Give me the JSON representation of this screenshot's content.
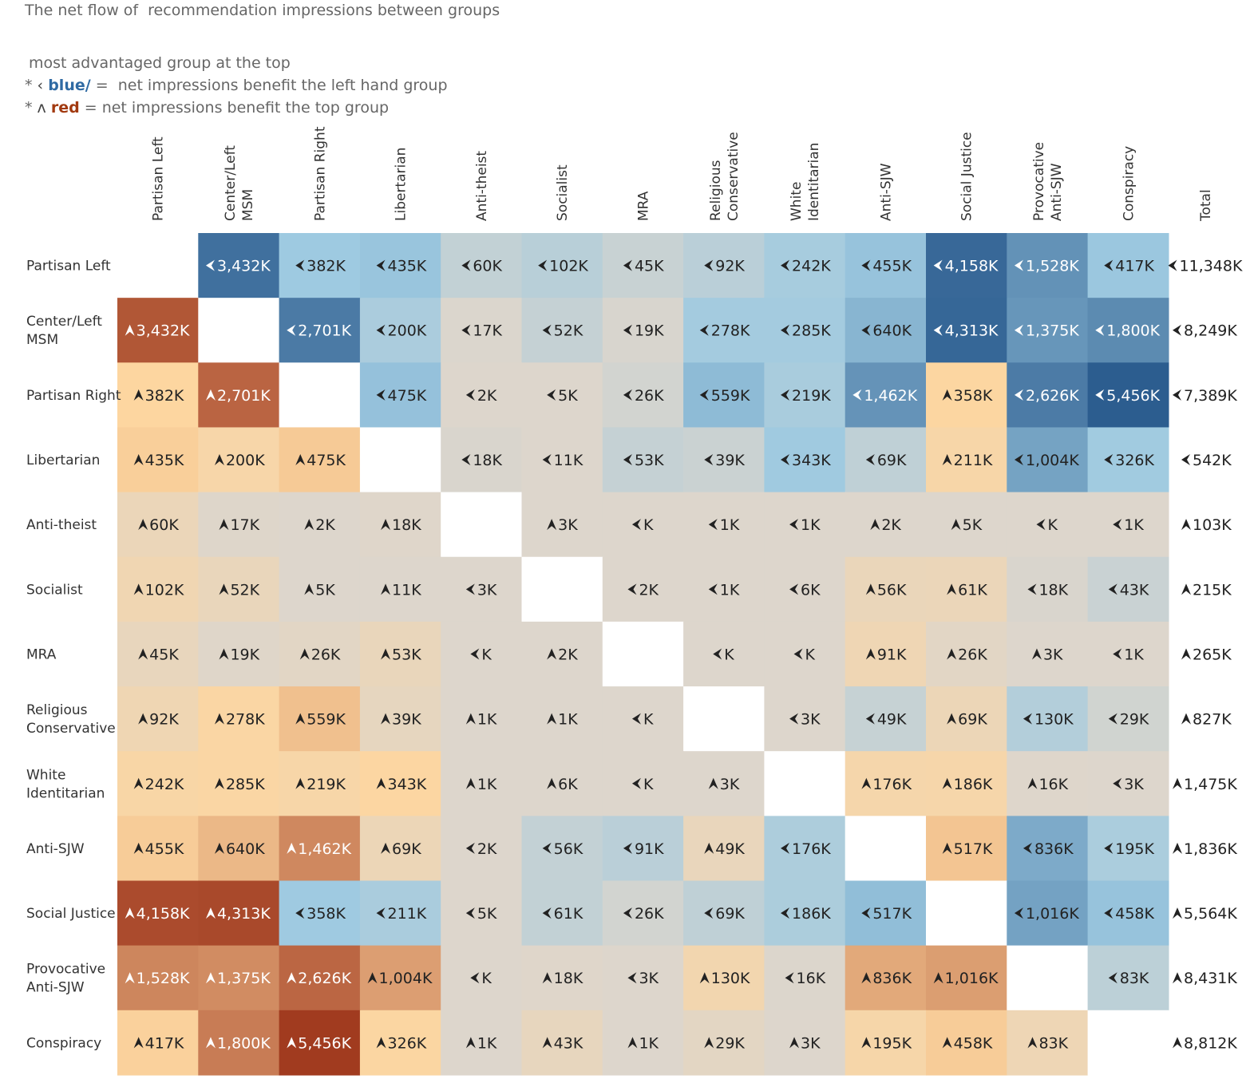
{
  "title": "The net flow of  recommendation impressions between groups",
  "legend": {
    "line1": "most advantaged group at the top",
    "line2_prefix": "* ",
    "line2_glyph": "‹",
    "line2_colored": "blue/",
    "line2_rest": " =  net impressions benefit the left hand group",
    "line3_prefix": "* ",
    "line3_glyph": "ʌ",
    "line3_colored": "red",
    "line3_rest": " = net impressions benefit the top group"
  },
  "colors": {
    "blue_dark": "#2c5d8f",
    "blue_light": "#9ecae1",
    "neutral": "#ddd6cc",
    "orange_light": "#fdd6a0",
    "orange_dark": "#a13b1f",
    "text_light": "#ffffff",
    "text_dark": "#222222"
  },
  "chart_data": {
    "type": "heatmap",
    "title": "The net flow of  recommendation impressions between groups",
    "unit": "K",
    "columns": [
      [
        "Partisan Left"
      ],
      [
        "Center/Left",
        "MSM"
      ],
      [
        "Partisan Right"
      ],
      [
        "Libertarian"
      ],
      [
        "Anti-theist"
      ],
      [
        "Socialist"
      ],
      [
        "MRA"
      ],
      [
        "Religious",
        "Conservative"
      ],
      [
        "White",
        "Identitarian"
      ],
      [
        "Anti-SJW"
      ],
      [
        "Social Justice"
      ],
      [
        "Provocative",
        "Anti-SJW"
      ],
      [
        "Conspiracy"
      ],
      [
        "Total"
      ]
    ],
    "rows": [
      [
        "Partisan Left"
      ],
      [
        "Center/Left",
        "MSM"
      ],
      [
        "Partisan Right"
      ],
      [
        "Libertarian"
      ],
      [
        "Anti-theist"
      ],
      [
        "Socialist"
      ],
      [
        "MRA"
      ],
      [
        "Religious",
        "Conservative"
      ],
      [
        "White",
        "Identitarian"
      ],
      [
        "Anti-SJW"
      ],
      [
        "Social Justice"
      ],
      [
        "Provocative",
        "Anti-SJW"
      ],
      [
        "Conspiracy"
      ]
    ],
    "direction_key": {
      "L": "net impressions benefit the left hand group",
      "U": "net impressions benefit the top group"
    },
    "cells": [
      [
        null,
        [
          "L",
          "3,432K"
        ],
        [
          "L",
          "382K"
        ],
        [
          "L",
          "435K"
        ],
        [
          "L",
          "60K"
        ],
        [
          "L",
          "102K"
        ],
        [
          "L",
          "45K"
        ],
        [
          "L",
          "92K"
        ],
        [
          "L",
          "242K"
        ],
        [
          "L",
          "455K"
        ],
        [
          "L",
          "4,158K"
        ],
        [
          "L",
          "1,528K"
        ],
        [
          "L",
          "417K"
        ]
      ],
      [
        [
          "U",
          "3,432K"
        ],
        null,
        [
          "L",
          "2,701K"
        ],
        [
          "L",
          "200K"
        ],
        [
          "L",
          "17K"
        ],
        [
          "L",
          "52K"
        ],
        [
          "L",
          "19K"
        ],
        [
          "L",
          "278K"
        ],
        [
          "L",
          "285K"
        ],
        [
          "L",
          "640K"
        ],
        [
          "L",
          "4,313K"
        ],
        [
          "L",
          "1,375K"
        ],
        [
          "L",
          "1,800K"
        ]
      ],
      [
        [
          "U",
          "382K"
        ],
        [
          "U",
          "2,701K"
        ],
        null,
        [
          "L",
          "475K"
        ],
        [
          "L",
          "2K"
        ],
        [
          "L",
          "5K"
        ],
        [
          "L",
          "26K"
        ],
        [
          "L",
          "559K"
        ],
        [
          "L",
          "219K"
        ],
        [
          "L",
          "1,462K"
        ],
        [
          "U",
          "358K"
        ],
        [
          "L",
          "2,626K"
        ],
        [
          "L",
          "5,456K"
        ]
      ],
      [
        [
          "U",
          "435K"
        ],
        [
          "U",
          "200K"
        ],
        [
          "U",
          "475K"
        ],
        null,
        [
          "L",
          "18K"
        ],
        [
          "L",
          "11K"
        ],
        [
          "L",
          "53K"
        ],
        [
          "L",
          "39K"
        ],
        [
          "L",
          "343K"
        ],
        [
          "L",
          "69K"
        ],
        [
          "U",
          "211K"
        ],
        [
          "L",
          "1,004K"
        ],
        [
          "L",
          "326K"
        ]
      ],
      [
        [
          "U",
          "60K"
        ],
        [
          "U",
          "17K"
        ],
        [
          "U",
          "2K"
        ],
        [
          "U",
          "18K"
        ],
        null,
        [
          "U",
          "3K"
        ],
        [
          "L",
          "K"
        ],
        [
          "L",
          "1K"
        ],
        [
          "L",
          "1K"
        ],
        [
          "U",
          "2K"
        ],
        [
          "U",
          "5K"
        ],
        [
          "L",
          "K"
        ],
        [
          "L",
          "1K"
        ]
      ],
      [
        [
          "U",
          "102K"
        ],
        [
          "U",
          "52K"
        ],
        [
          "U",
          "5K"
        ],
        [
          "U",
          "11K"
        ],
        [
          "L",
          "3K"
        ],
        null,
        [
          "L",
          "2K"
        ],
        [
          "L",
          "1K"
        ],
        [
          "L",
          "6K"
        ],
        [
          "U",
          "56K"
        ],
        [
          "U",
          "61K"
        ],
        [
          "L",
          "18K"
        ],
        [
          "L",
          "43K"
        ]
      ],
      [
        [
          "U",
          "45K"
        ],
        [
          "U",
          "19K"
        ],
        [
          "U",
          "26K"
        ],
        [
          "U",
          "53K"
        ],
        [
          "L",
          "K"
        ],
        [
          "U",
          "2K"
        ],
        null,
        [
          "L",
          "K"
        ],
        [
          "L",
          "K"
        ],
        [
          "U",
          "91K"
        ],
        [
          "U",
          "26K"
        ],
        [
          "U",
          "3K"
        ],
        [
          "L",
          "1K"
        ]
      ],
      [
        [
          "U",
          "92K"
        ],
        [
          "U",
          "278K"
        ],
        [
          "U",
          "559K"
        ],
        [
          "U",
          "39K"
        ],
        [
          "U",
          "1K"
        ],
        [
          "U",
          "1K"
        ],
        [
          "L",
          "K"
        ],
        null,
        [
          "L",
          "3K"
        ],
        [
          "L",
          "49K"
        ],
        [
          "U",
          "69K"
        ],
        [
          "L",
          "130K"
        ],
        [
          "L",
          "29K"
        ]
      ],
      [
        [
          "U",
          "242K"
        ],
        [
          "U",
          "285K"
        ],
        [
          "U",
          "219K"
        ],
        [
          "U",
          "343K"
        ],
        [
          "U",
          "1K"
        ],
        [
          "U",
          "6K"
        ],
        [
          "L",
          "K"
        ],
        [
          "U",
          "3K"
        ],
        null,
        [
          "U",
          "176K"
        ],
        [
          "U",
          "186K"
        ],
        [
          "U",
          "16K"
        ],
        [
          "L",
          "3K"
        ]
      ],
      [
        [
          "U",
          "455K"
        ],
        [
          "U",
          "640K"
        ],
        [
          "U",
          "1,462K"
        ],
        [
          "U",
          "69K"
        ],
        [
          "L",
          "2K"
        ],
        [
          "L",
          "56K"
        ],
        [
          "L",
          "91K"
        ],
        [
          "U",
          "49K"
        ],
        [
          "L",
          "176K"
        ],
        null,
        [
          "U",
          "517K"
        ],
        [
          "L",
          "836K"
        ],
        [
          "L",
          "195K"
        ]
      ],
      [
        [
          "U",
          "4,158K"
        ],
        [
          "U",
          "4,313K"
        ],
        [
          "L",
          "358K"
        ],
        [
          "L",
          "211K"
        ],
        [
          "L",
          "5K"
        ],
        [
          "L",
          "61K"
        ],
        [
          "L",
          "26K"
        ],
        [
          "L",
          "69K"
        ],
        [
          "L",
          "186K"
        ],
        [
          "L",
          "517K"
        ],
        null,
        [
          "L",
          "1,016K"
        ],
        [
          "L",
          "458K"
        ]
      ],
      [
        [
          "U",
          "1,528K"
        ],
        [
          "U",
          "1,375K"
        ],
        [
          "U",
          "2,626K"
        ],
        [
          "U",
          "1,004K"
        ],
        [
          "L",
          "K"
        ],
        [
          "U",
          "18K"
        ],
        [
          "L",
          "3K"
        ],
        [
          "U",
          "130K"
        ],
        [
          "L",
          "16K"
        ],
        [
          "U",
          "836K"
        ],
        [
          "U",
          "1,016K"
        ],
        null,
        [
          "L",
          "83K"
        ]
      ],
      [
        [
          "U",
          "417K"
        ],
        [
          "U",
          "1,800K"
        ],
        [
          "U",
          "5,456K"
        ],
        [
          "U",
          "326K"
        ],
        [
          "U",
          "1K"
        ],
        [
          "U",
          "43K"
        ],
        [
          "U",
          "1K"
        ],
        [
          "U",
          "29K"
        ],
        [
          "U",
          "3K"
        ],
        [
          "U",
          "195K"
        ],
        [
          "U",
          "458K"
        ],
        [
          "U",
          "83K"
        ],
        null
      ]
    ],
    "totals": [
      [
        "L",
        "11,348K"
      ],
      [
        "L",
        "8,249K"
      ],
      [
        "L",
        "7,389K"
      ],
      [
        "L",
        "542K"
      ],
      [
        "U",
        "103K"
      ],
      [
        "U",
        "215K"
      ],
      [
        "U",
        "265K"
      ],
      [
        "U",
        "827K"
      ],
      [
        "U",
        "1,475K"
      ],
      [
        "U",
        "1,836K"
      ],
      [
        "U",
        "5,564K"
      ],
      [
        "U",
        "8,431K"
      ],
      [
        "U",
        "8,812K"
      ]
    ]
  }
}
